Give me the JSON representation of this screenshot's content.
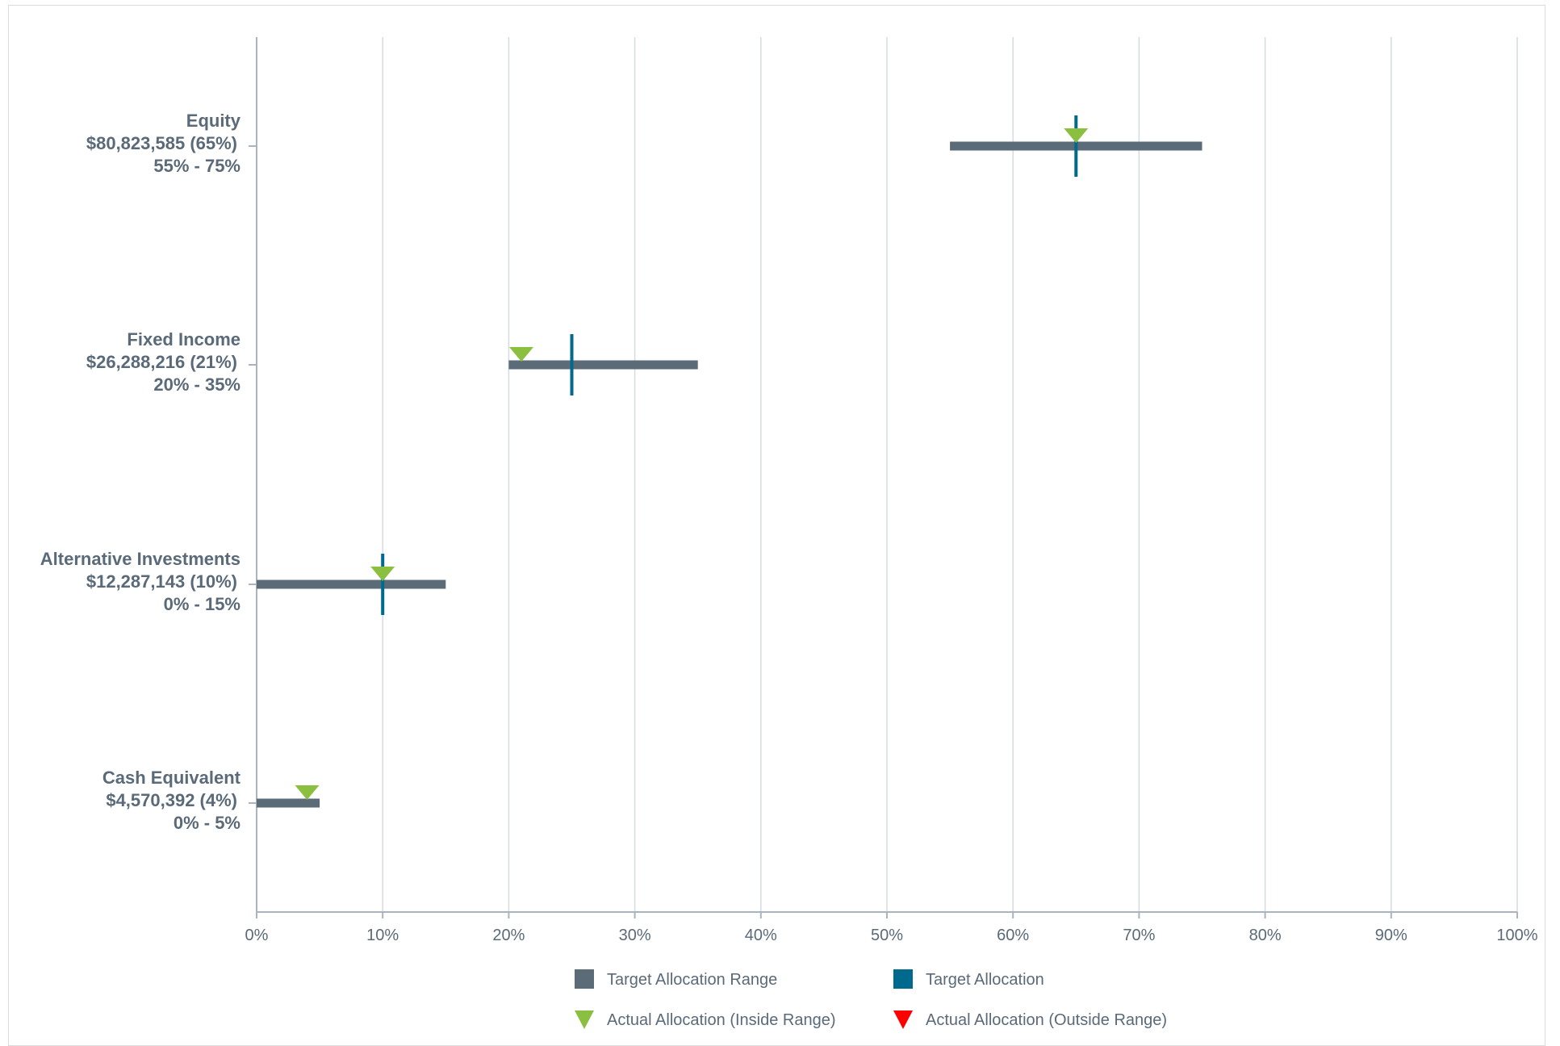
{
  "chart_data": {
    "type": "range-bullet",
    "x_axis": {
      "min": 0,
      "max": 100,
      "ticks": [
        0,
        10,
        20,
        30,
        40,
        50,
        60,
        70,
        80,
        90,
        100
      ],
      "tick_labels": [
        "0%",
        "10%",
        "20%",
        "30%",
        "40%",
        "50%",
        "60%",
        "70%",
        "80%",
        "90%",
        "100%"
      ],
      "unit": "%",
      "grid": true
    },
    "categories": [
      {
        "name": "Equity",
        "amount_label": "$80,823,585 (65%)",
        "range_label": "55% - 75%",
        "range_min": 55,
        "range_max": 75,
        "target": 65,
        "actual": 65,
        "actual_in_range": true
      },
      {
        "name": "Fixed Income",
        "amount_label": "$26,288,216 (21%)",
        "range_label": "20% - 35%",
        "range_min": 20,
        "range_max": 35,
        "target": 25,
        "actual": 21,
        "actual_in_range": true
      },
      {
        "name": "Alternative Investments",
        "amount_label": "$12,287,143 (10%)",
        "range_label": "0% - 15%",
        "range_min": 0,
        "range_max": 15,
        "target": 10,
        "actual": 10,
        "actual_in_range": true
      },
      {
        "name": "Cash Equivalent",
        "amount_label": "$4,570,392 (4%)",
        "range_label": "0% - 5%",
        "range_min": 0,
        "range_max": 5,
        "target": 0,
        "actual": 4,
        "actual_in_range": true
      }
    ],
    "legend": {
      "placement": "bottom",
      "items": [
        {
          "label": "Target Allocation Range",
          "symbol": "square",
          "color": "#5b6b78"
        },
        {
          "label": "Target Allocation",
          "symbol": "square",
          "color": "#006a8e"
        },
        {
          "label": "Actual Allocation (Inside Range)",
          "symbol": "triangle-down",
          "color": "#8bbf3f"
        },
        {
          "label": "Actual Allocation (Outside Range)",
          "symbol": "triangle-down",
          "color": "#ff0000"
        }
      ]
    },
    "colors": {
      "range_bar": "#5b6b78",
      "target_marker": "#006a8e",
      "actual_inside": "#8bbf3f",
      "actual_outside": "#ff0000",
      "grid": "#d6dbe1",
      "axis": "#a9b4be",
      "label": "#5a6a78"
    }
  }
}
